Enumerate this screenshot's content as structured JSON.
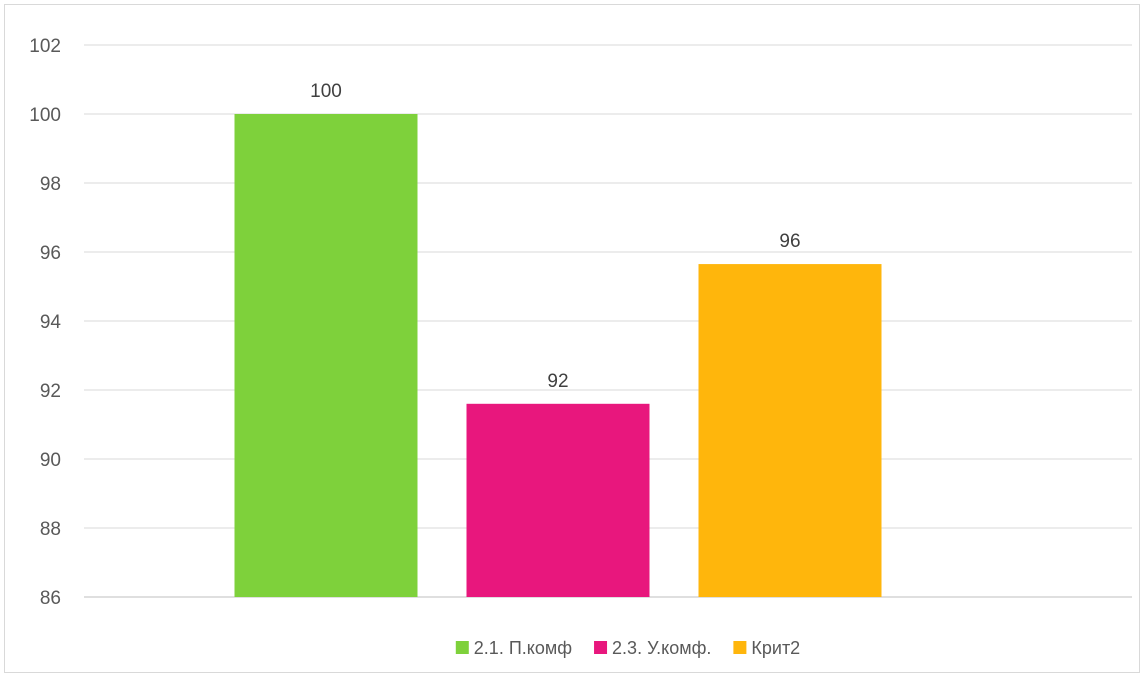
{
  "chart_data": {
    "type": "bar",
    "categories": [
      ""
    ],
    "series": [
      {
        "name": "2.1. П.комф",
        "values": [
          100
        ],
        "color": "#7ED13B",
        "label": "100"
      },
      {
        "name": "2.3. У.комф.",
        "values": [
          91.6
        ],
        "color": "#E8177D",
        "label": "92"
      },
      {
        "name": "Крит2",
        "values": [
          95.65
        ],
        "color": "#FFB60C",
        "label": "96"
      }
    ],
    "yticks": [
      "86",
      "88",
      "90",
      "92",
      "94",
      "96",
      "98",
      "100",
      "102"
    ],
    "ylim": [
      86,
      102
    ],
    "grid": true,
    "legend_position": "bottom",
    "title": "",
    "xlabel": "",
    "ylabel": ""
  }
}
